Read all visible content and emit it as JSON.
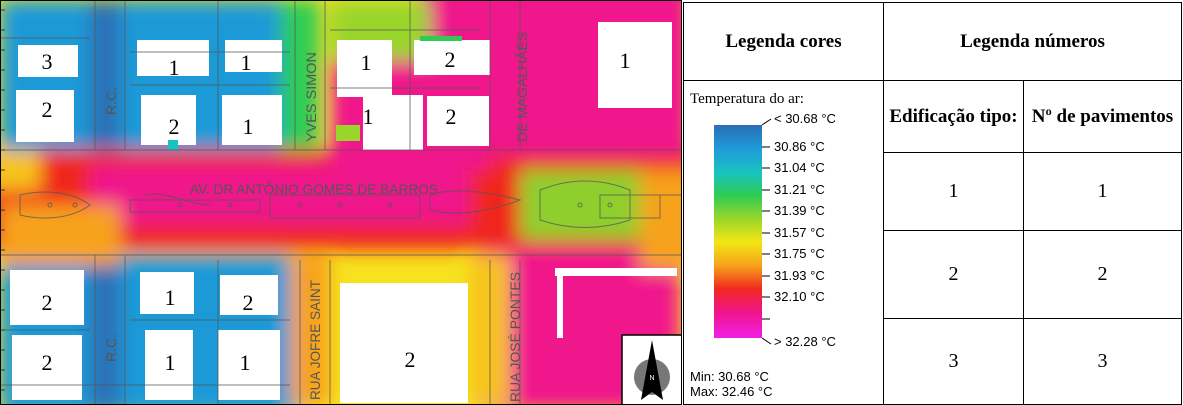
{
  "map": {
    "street_labels": [
      "AV. DR ANTÔNIO GOMES DE BARROS",
      "R.C.",
      "R.C.",
      "YVES SIMON",
      "DE MAGALHÃES",
      "RUA JOFRE SAINT",
      "RUA JOSÉ PONTES"
    ],
    "building_numbers": [
      "3",
      "2",
      "1",
      "1",
      "2",
      "1",
      "1",
      "2",
      "2",
      "1",
      "1",
      "2",
      "1",
      "2",
      "2",
      "1",
      "1",
      "2"
    ],
    "compass_label": "N"
  },
  "legend": {
    "colors_header": "Legenda cores",
    "numbers_header": "Legenda números",
    "col_building": "Edificação tipo:",
    "col_floors": "Nº de pavimentos",
    "rows": [
      {
        "building": "1",
        "floors": "1"
      },
      {
        "building": "2",
        "floors": "2"
      },
      {
        "building": "3",
        "floors": "3"
      }
    ],
    "temp_title": "Temperatura do ar:",
    "scale_labels": [
      "< 30.68 °C",
      "30.86  °C",
      "31.04  °C",
      "31.21  °C",
      "31.39  °C",
      "31.57  °C",
      "31.75  °C",
      "31.93  °C",
      "32.10  °C",
      "> 32.28 °C"
    ],
    "min_label": "Min: 30.68 °C",
    "max_label": "Max: 32.46 °C",
    "scale_colors": [
      "#2a6fb5",
      "#1f9ad8",
      "#19c2c2",
      "#2ecc55",
      "#9ad62a",
      "#f2e614",
      "#f7a21a",
      "#f0281e",
      "#f0148c",
      "#f020e6"
    ]
  }
}
